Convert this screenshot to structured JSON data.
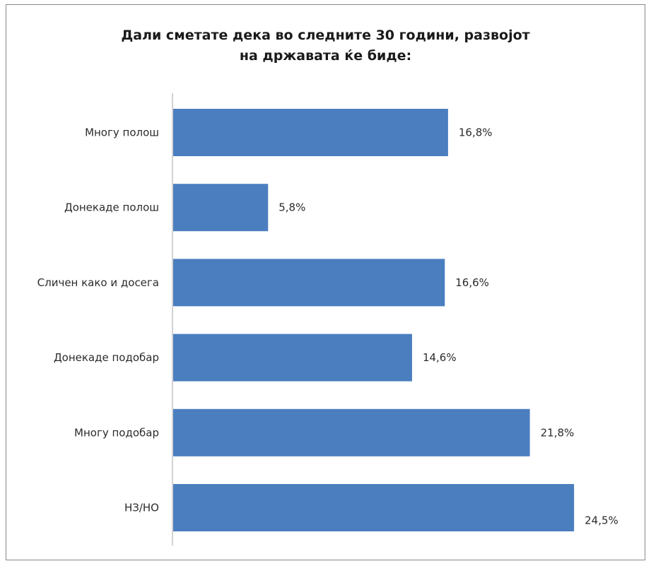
{
  "chart_data": {
    "type": "bar",
    "orientation": "horizontal",
    "title": "Дали сметате дека во следните 30 години, развојот\nна државата ќе биде:",
    "categories": [
      "Многу полош",
      "Донекаде полош",
      "Сличен како и досега",
      "Донекаде подобар",
      "Многу подобар",
      "НЗ/НО"
    ],
    "values": [
      16.8,
      5.8,
      16.6,
      14.6,
      21.8,
      24.5
    ],
    "value_labels": [
      "16,8%",
      "5,8%",
      "16,6%",
      "14,6%",
      "21,8%",
      "24,5%"
    ],
    "xlim": [
      0,
      27
    ],
    "bar_color": "#4a7ebf",
    "grid": false,
    "legend": "none"
  }
}
